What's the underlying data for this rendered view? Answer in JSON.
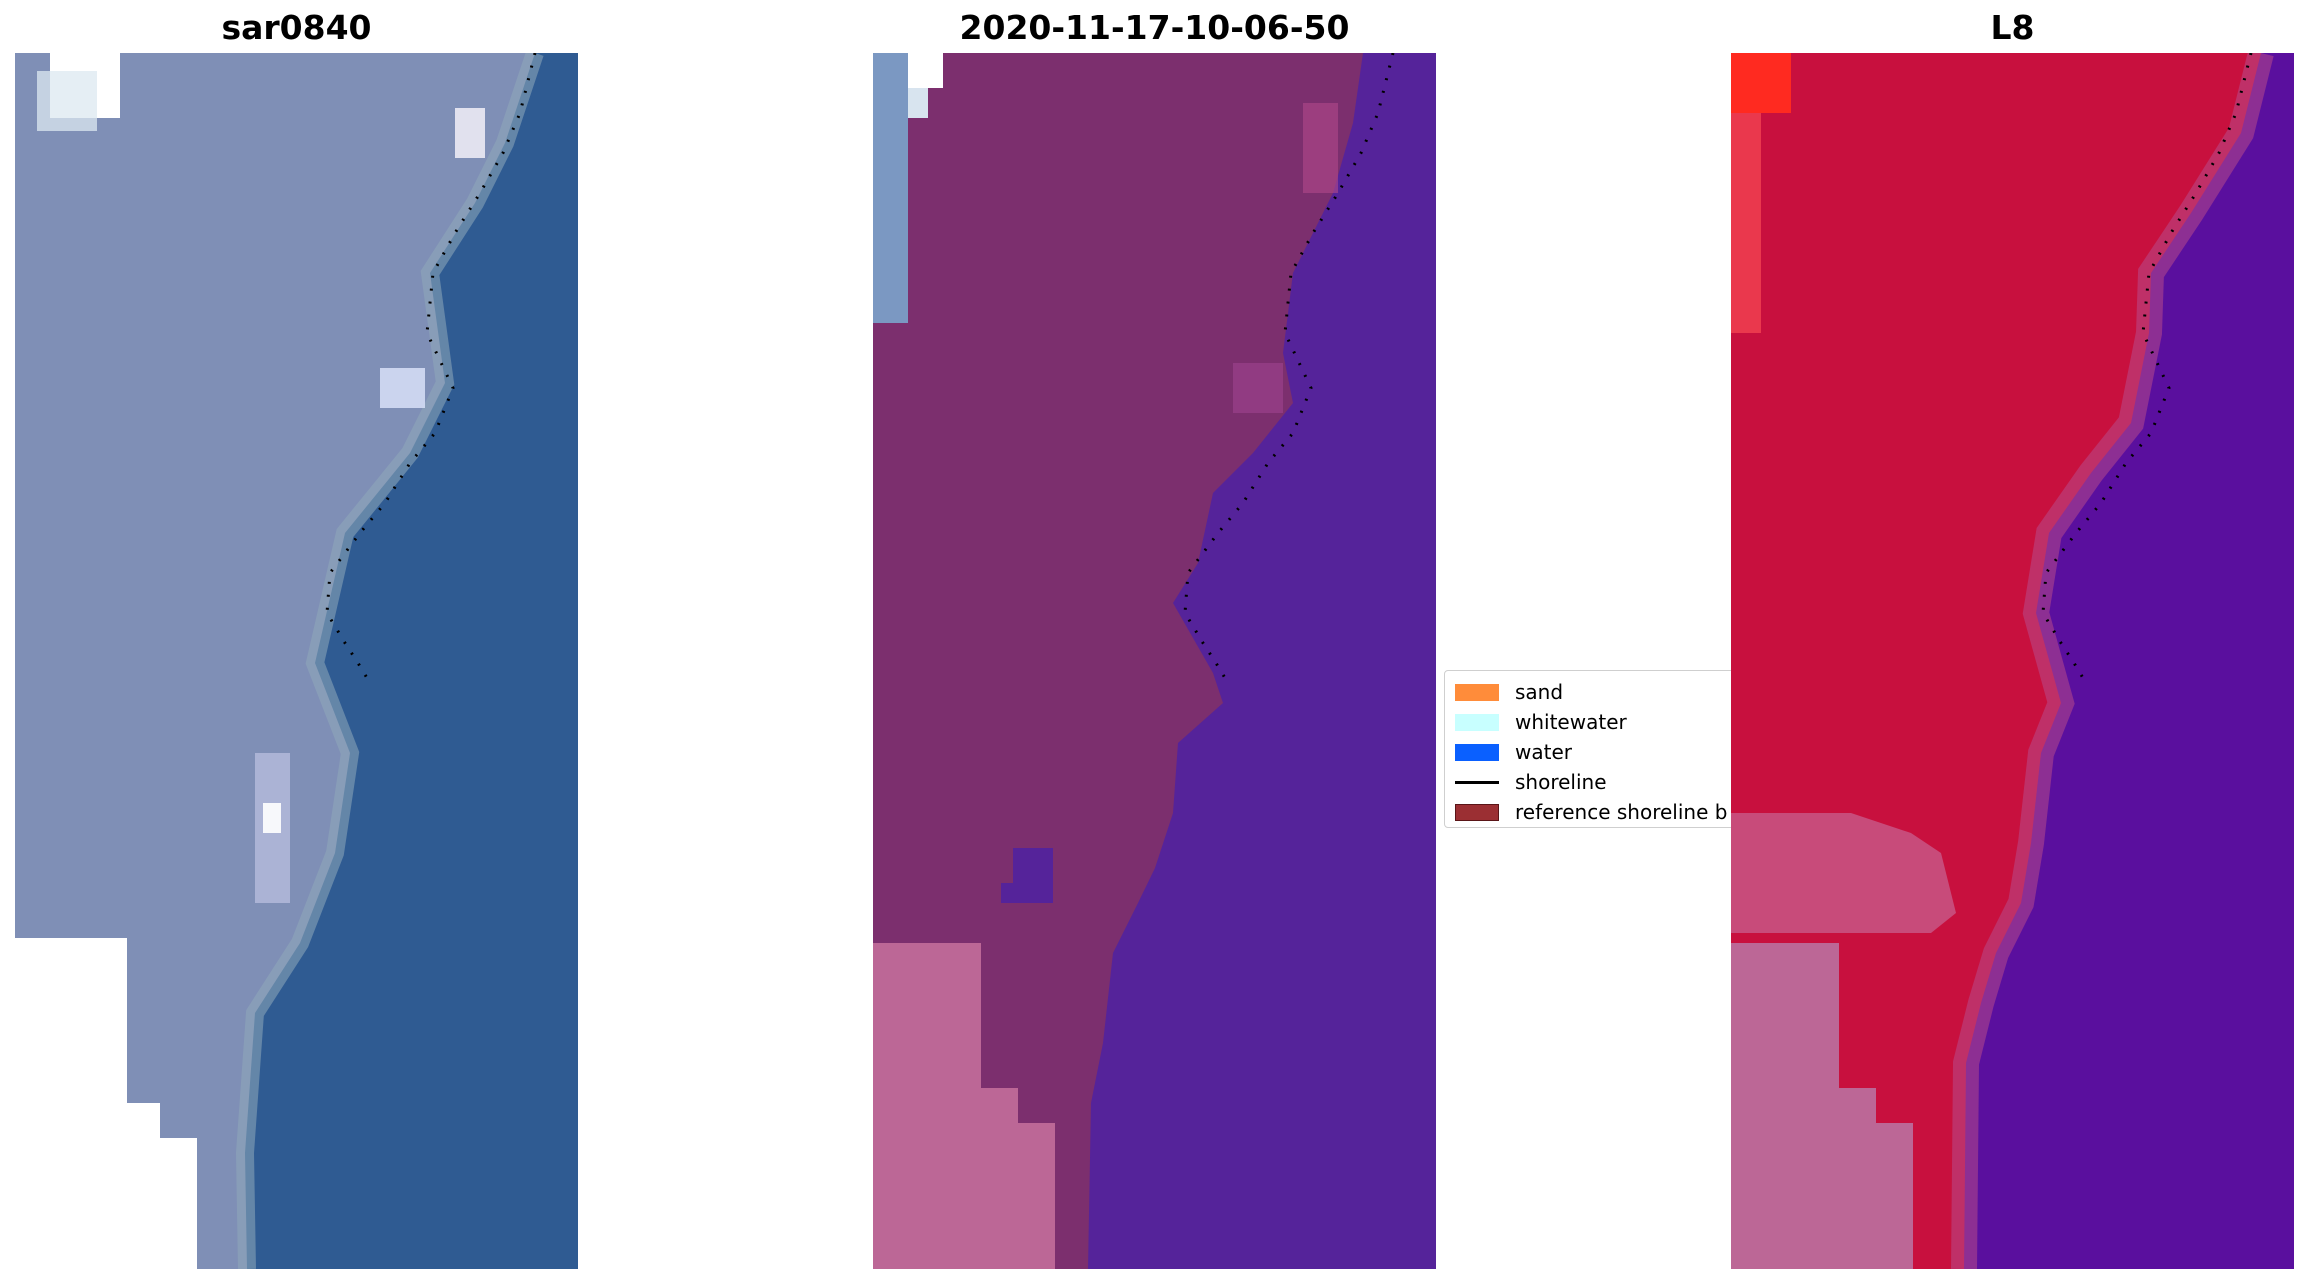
{
  "panels": [
    {
      "title": "sar0840"
    },
    {
      "title": "2020-11-17-10-06-50"
    },
    {
      "title": "L8"
    }
  ],
  "legend": {
    "items": [
      {
        "label": "sand",
        "color": "#ff8c3a",
        "kind": "patch"
      },
      {
        "label": "whitewater",
        "color": "#c8ffff",
        "kind": "patch"
      },
      {
        "label": "water",
        "color": "#0a60ff",
        "kind": "patch"
      },
      {
        "label": "shoreline",
        "color": "#000000",
        "kind": "line"
      },
      {
        "label": "reference shoreline b",
        "color": "#9b2f33",
        "kind": "patch"
      }
    ]
  },
  "colors": {
    "sar_land": "#7f8fb6",
    "sar_water": "#2f5b92",
    "class_land": "#7c2f6e",
    "class_water": "#55239a",
    "class_nodata": "#bc6796",
    "l8_land": "#c8103e",
    "l8_water": "#5a0f9e",
    "l8_nodata": "#bc6796"
  }
}
